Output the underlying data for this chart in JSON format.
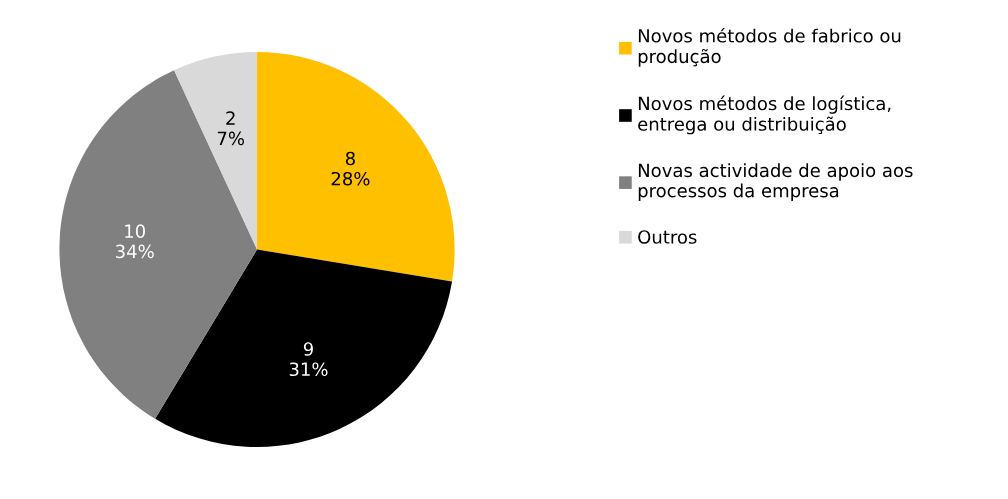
{
  "chart_data": {
    "type": "pie",
    "categories": [
      "Novos métodos de fabrico ou\nprodução",
      "Novos métodos de logística,\nentrega ou distribuição",
      "Novas actividade de apoio aos\nprocessos da empresa",
      "Outros"
    ],
    "values": [
      8,
      9,
      10,
      2
    ],
    "colors": [
      "#ffc000",
      "#000000",
      "#808080",
      "#d9d9d9"
    ],
    "value_labels": [
      "8\n28%",
      "9\n31%",
      "10\n34%",
      "2\n7%"
    ],
    "legend": "right"
  }
}
